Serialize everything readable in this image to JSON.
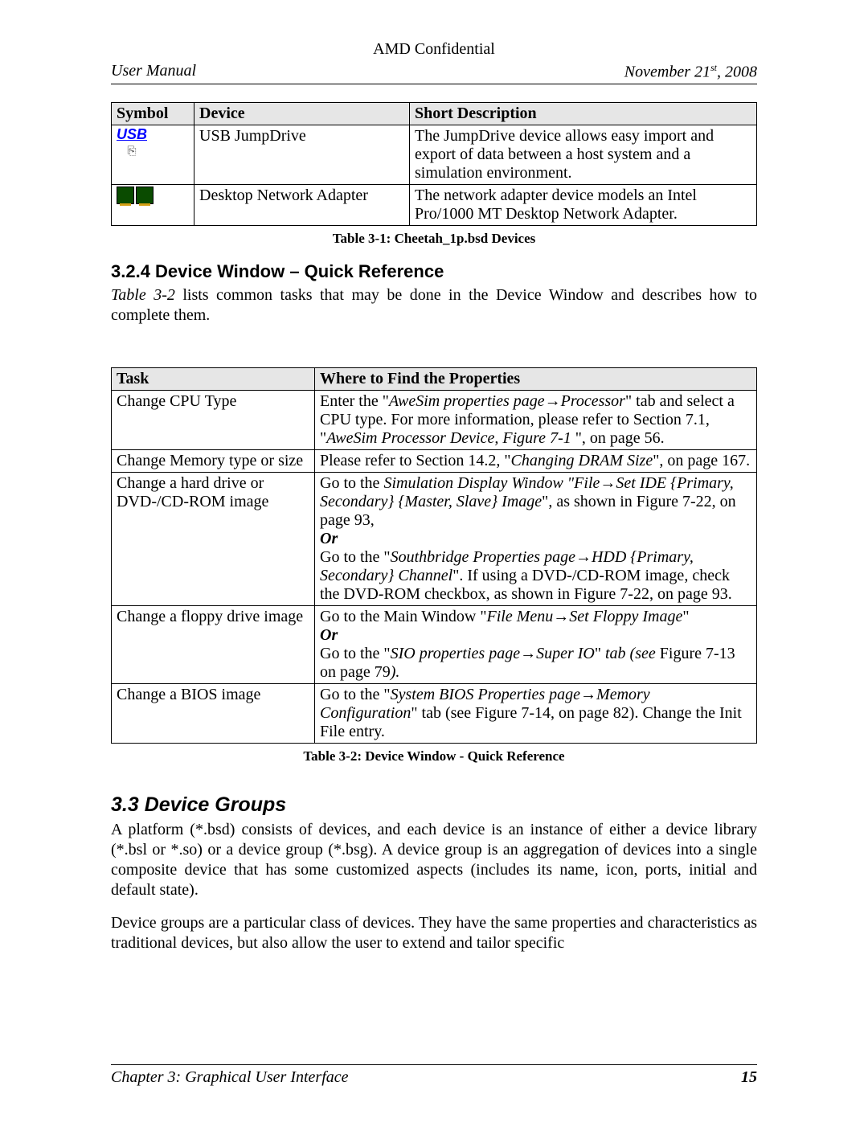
{
  "header": {
    "confidential": "AMD Confidential",
    "left": "User Manual",
    "right_prefix": "November 21",
    "right_sup": "st",
    "right_suffix": ", 2008"
  },
  "table1": {
    "headers": {
      "symbol": "Symbol",
      "device": "Device",
      "desc": "Short Description"
    },
    "rows": [
      {
        "icon": "usb",
        "device": "USB JumpDrive",
        "desc": "The JumpDrive device allows easy import and export of data between a host system and a simulation environment."
      },
      {
        "icon": "net",
        "device": "Desktop Network Adapter",
        "desc": "The network adapter device models an Intel Pro/1000 MT Desktop Network Adapter."
      }
    ],
    "caption": "Table 3-1: Cheetah_1p.bsd Devices"
  },
  "section324": {
    "heading": "3.2.4  Device Window – Quick Reference",
    "para_lead_italic": "Table 3-2",
    "para_rest": " lists common tasks that may be done in the Device Window and describes how to complete them."
  },
  "table2": {
    "headers": {
      "task": "Task",
      "prop": "Where to Find the Properties"
    },
    "caption": "Table 3-2: Device Window - Quick Reference",
    "rows": {
      "r1": {
        "task": "Change CPU Type",
        "t1": "Enter the \"",
        "i1": "AweSim properties page→Processor",
        "t2": "\" tab and select a CPU type. For more information, please refer to Section 7.1, \"",
        "i2": "AweSim Processor Device, Figure 7-1 ",
        "t3": "\", on page 56."
      },
      "r2": {
        "task": "Change Memory type or size",
        "t1": "Please refer to Section 14.2, \"",
        "i1": "Changing DRAM Size",
        "t2": "\", on page 167."
      },
      "r3": {
        "task": "Change a hard drive or DVD-/CD-ROM image",
        "t1": "Go to the ",
        "i1": "Simulation Display Window \"File→Set IDE {Primary, Secondary} {Master, Slave} Image",
        "t2": "\", as shown in Figure 7-22, on page 93,",
        "or": "Or",
        "t3": "Go to the \"",
        "i2": "Southbridge Properties page→HDD {Primary, Secondary} Channel",
        "t4": "\". If using a DVD-/CD-ROM image, check the DVD-ROM checkbox, as shown in Figure 7-22, on page 93."
      },
      "r4": {
        "task": "Change a floppy drive image",
        "t1": "Go to the Main Window \"",
        "i1": "File Menu→Set Floppy Image",
        "t2": "\"",
        "or": "Or",
        "t3": "Go to the \"",
        "i2": "SIO properties page→Super IO",
        "t4": "\" ",
        "i3": "tab (see ",
        "t5": "Figure 7-13 on page 79",
        "i4": ")."
      },
      "r5": {
        "task": "Change a BIOS image",
        "t1": "Go to the \"",
        "i1": "System BIOS Properties page→Memory Configuration",
        "t2": "\" tab (see Figure 7-14, on page 82). Change the Init File entry."
      }
    }
  },
  "section33": {
    "heading": "3.3  Device Groups",
    "p1": "A platform (*.bsd) consists of devices, and each device is an instance of either a device library (*.bsl or *.so) or a device group (*.bsg). A device group is an aggregation of devices into a single composite device that has some customized aspects (includes its name, icon, ports, initial and default state).",
    "p2": "Device groups are a particular class of devices. They have the same properties and characteristics as traditional devices, but also allow the user to extend and tailor specific"
  },
  "footer": {
    "left": "Chapter 3: Graphical User Interface",
    "page": "15"
  },
  "usb_label": "USB"
}
